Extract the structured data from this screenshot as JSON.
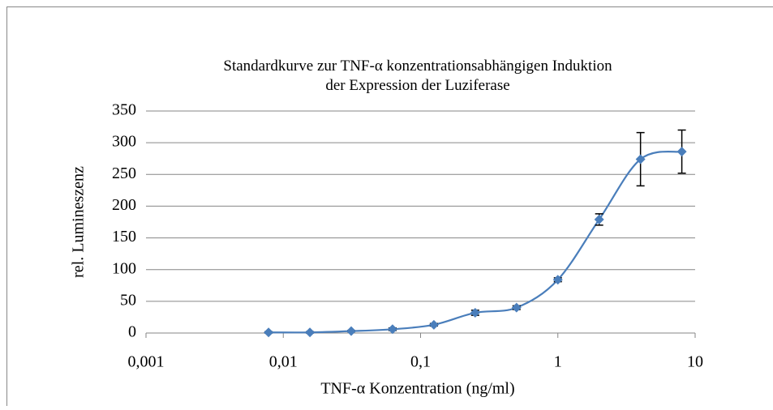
{
  "chart_data": {
    "type": "scatter",
    "title": "Standardkurve zur TNF-α konzentrationsabhängigen Induktion der Expression der Luziferase",
    "x_label": "TNF-α Konzentration (ng/ml)",
    "y_label": "rel. Lumineszenz",
    "xscale": "log",
    "xlim": [
      0.001,
      10
    ],
    "xticks": [
      {
        "value": 0.001,
        "label": "0,001"
      },
      {
        "value": 0.01,
        "label": "0,01"
      },
      {
        "value": 0.1,
        "label": "0,1"
      },
      1,
      10
    ],
    "ylim": [
      0,
      350
    ],
    "yticks": [
      0,
      50,
      100,
      150,
      200,
      250,
      300,
      350
    ],
    "grid": true,
    "smooth": true,
    "series": [
      {
        "color": "#4a7ebb",
        "x": [
          0.0078125,
          0.015625,
          0.03125,
          0.0625,
          0.125,
          0.25,
          0.5,
          1,
          2,
          4,
          8
        ],
        "values": [
          1,
          1,
          3,
          6,
          13,
          32,
          40,
          84,
          179,
          274,
          286
        ],
        "errors": [
          1,
          1,
          1,
          2,
          2,
          4,
          3,
          3,
          9,
          42,
          34
        ]
      }
    ]
  }
}
